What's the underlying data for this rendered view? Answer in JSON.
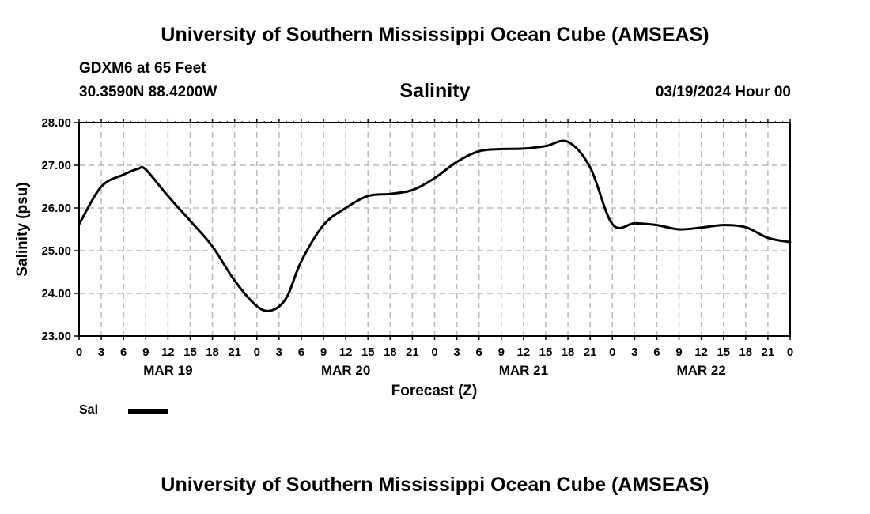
{
  "header": {
    "title": "University of Southern Mississippi Ocean Cube (AMSEAS)",
    "station": "GDXM6 at 65 Feet",
    "coords": "30.3590N  88.4200W",
    "date": "03/19/2024 Hour 00",
    "footer_title": "University of Southern Mississippi Ocean Cube (AMSEAS)"
  },
  "legend": {
    "label": "Sal"
  },
  "chart_data": {
    "type": "line",
    "title": "Salinity",
    "xlabel": "Forecast (Z)",
    "ylabel": "Salinity (psu)",
    "xlim": [
      0,
      96
    ],
    "ylim": [
      23.0,
      28.0
    ],
    "yticks": [
      "23.00",
      "24.00",
      "25.00",
      "26.00",
      "27.00",
      "28.00"
    ],
    "xtick_labels": [
      "0",
      "3",
      "6",
      "9",
      "12",
      "15",
      "18",
      "21",
      "0",
      "3",
      "6",
      "9",
      "12",
      "15",
      "18",
      "21",
      "0",
      "3",
      "6",
      "9",
      "12",
      "15",
      "18",
      "21",
      "0",
      "3",
      "6",
      "9",
      "12",
      "15",
      "18",
      "21",
      "0"
    ],
    "date_labels": [
      {
        "label": "MAR 19",
        "hour": 12
      },
      {
        "label": "MAR 20",
        "hour": 36
      },
      {
        "label": "MAR 21",
        "hour": 60
      },
      {
        "label": "MAR 22",
        "hour": 84
      }
    ],
    "grid": true,
    "series": [
      {
        "name": "Sal",
        "color": "#000000",
        "x": [
          0,
          3,
          6,
          8,
          9,
          12,
          15,
          18,
          21,
          24,
          26,
          28,
          30,
          33,
          36,
          39,
          42,
          45,
          48,
          51,
          54,
          57,
          60,
          63,
          66,
          69,
          72,
          75,
          78,
          81,
          84,
          87,
          90,
          93,
          96
        ],
        "y": [
          25.62,
          26.5,
          26.78,
          26.92,
          26.9,
          26.28,
          25.7,
          25.1,
          24.3,
          23.7,
          23.6,
          23.9,
          24.75,
          25.6,
          26.0,
          26.28,
          26.33,
          26.42,
          26.7,
          27.08,
          27.33,
          27.38,
          27.39,
          27.45,
          27.55,
          26.95,
          25.62,
          25.64,
          25.6,
          25.5,
          25.54,
          25.6,
          25.55,
          25.3,
          25.2
        ]
      }
    ]
  }
}
